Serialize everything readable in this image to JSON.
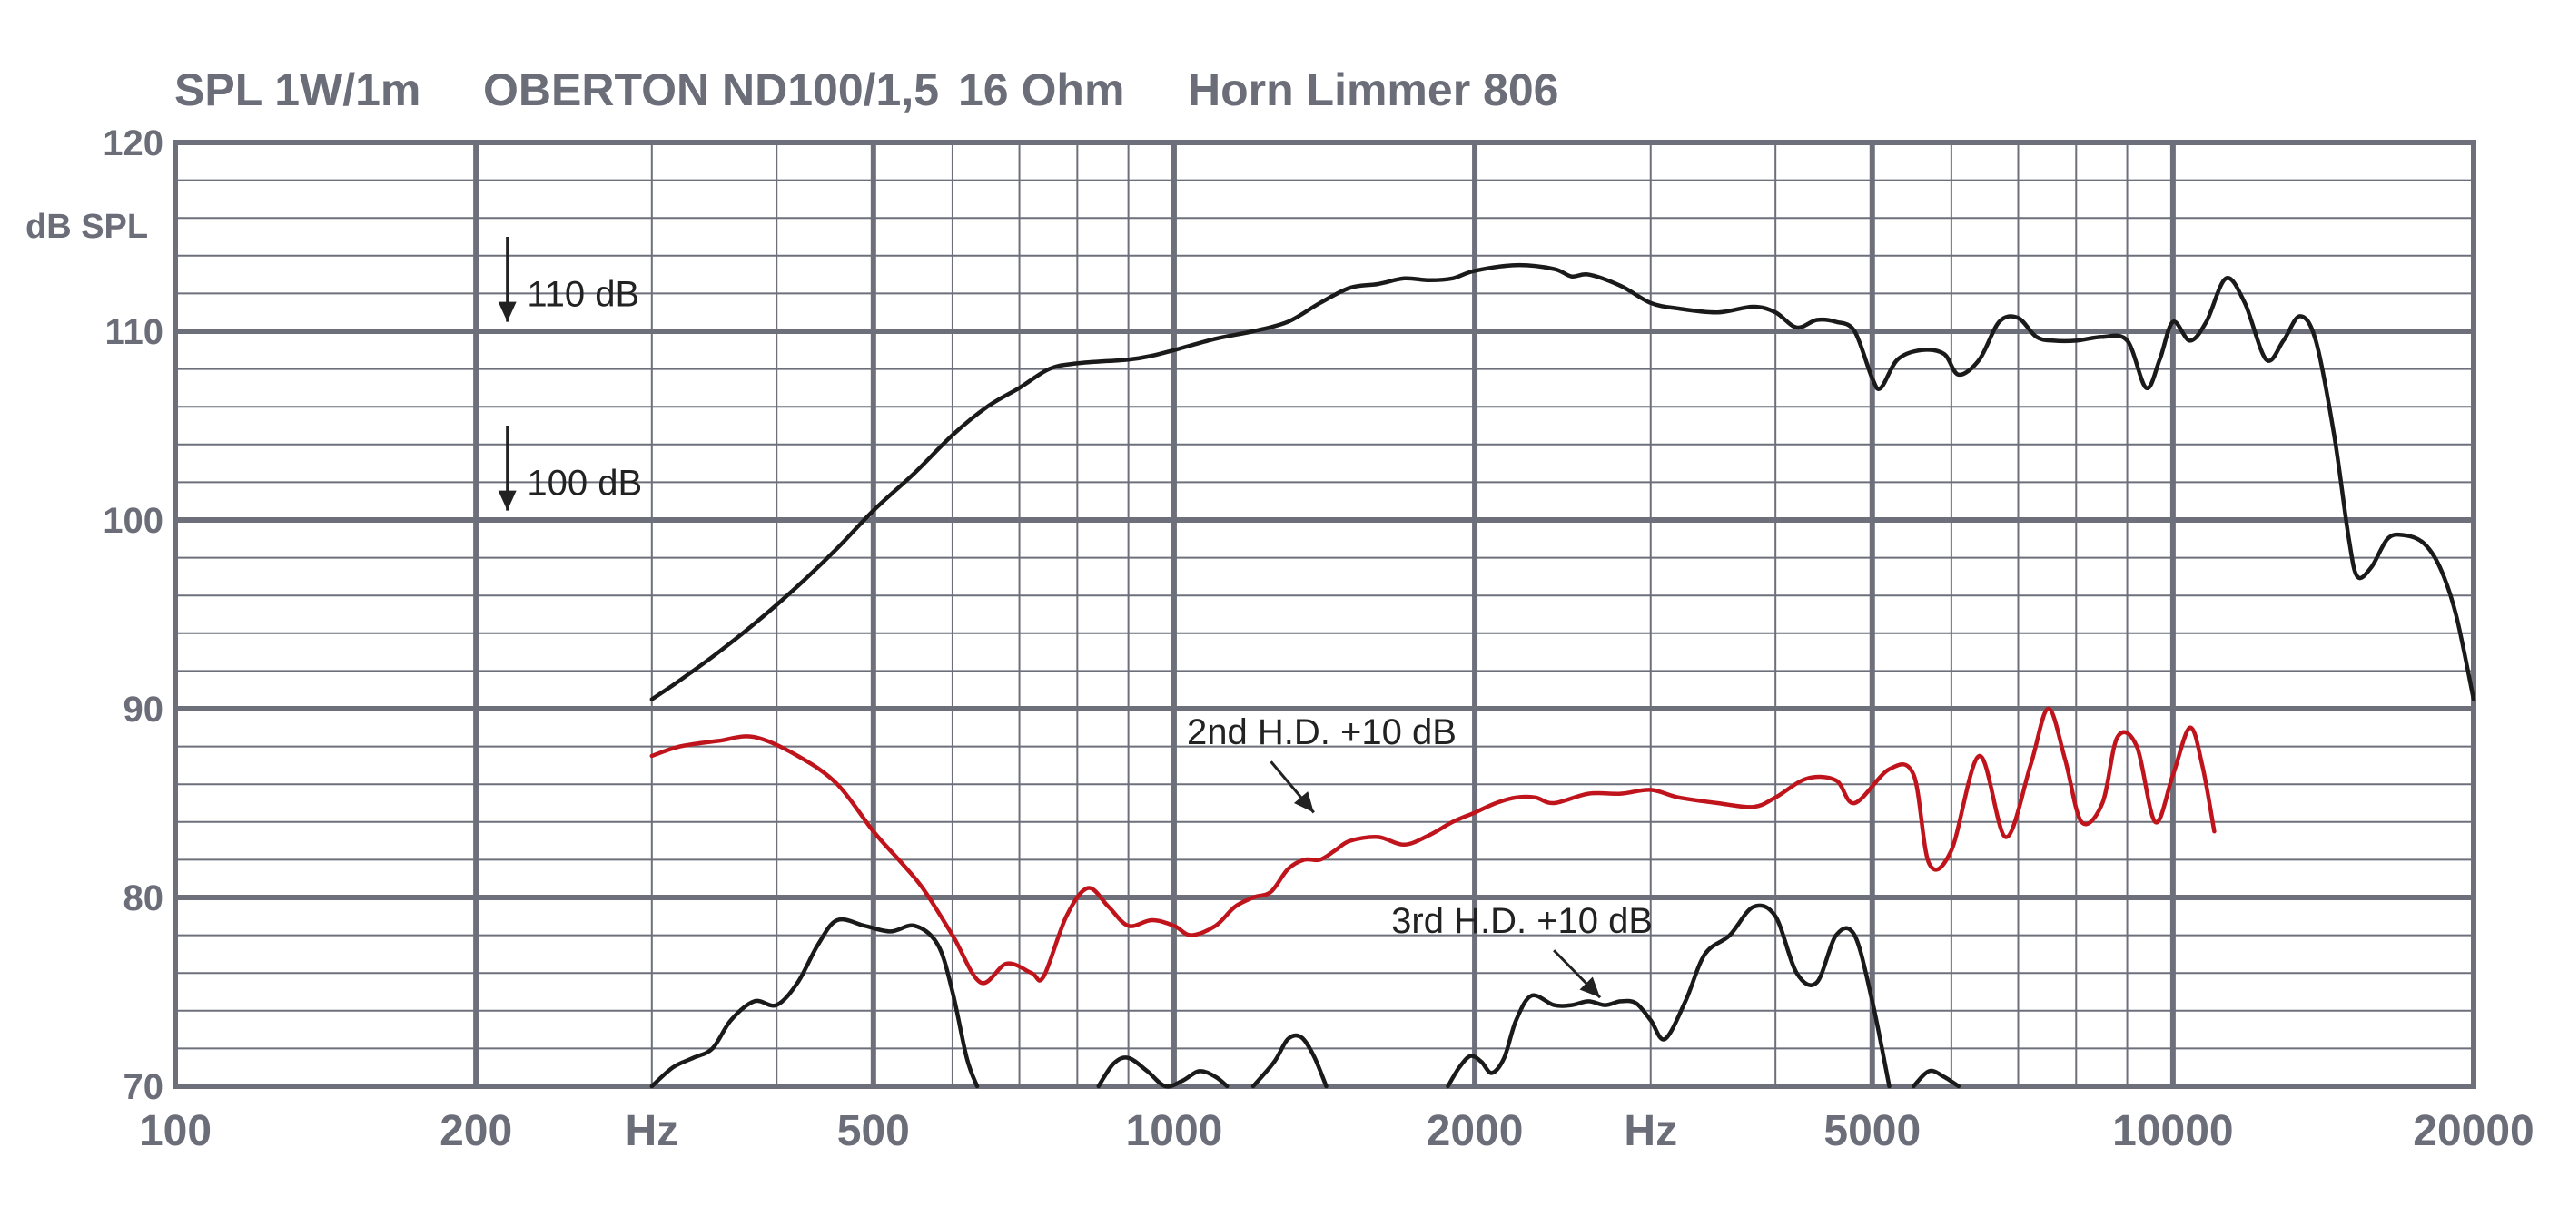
{
  "chart_data": {
    "type": "line",
    "title_parts": [
      "SPL 1W/1m",
      "OBERTON ND100/1,5",
      "16 Ohm",
      "Horn Limmer 806"
    ],
    "ylabel": "dB SPL",
    "x_scale": "log",
    "xlim": [
      100,
      20000
    ],
    "ylim": [
      70,
      120
    ],
    "grid": true,
    "x_tick_labels": [
      {
        "value": 100,
        "label": "100"
      },
      {
        "value": 200,
        "label": "200"
      },
      {
        "value": 300,
        "label": "Hz"
      },
      {
        "value": 500,
        "label": "500"
      },
      {
        "value": 1000,
        "label": "1000"
      },
      {
        "value": 2000,
        "label": "2000"
      },
      {
        "value": 3000,
        "label": "Hz"
      },
      {
        "value": 5000,
        "label": "5000"
      },
      {
        "value": 10000,
        "label": "10000"
      },
      {
        "value": 20000,
        "label": "20000"
      }
    ],
    "y_tick_labels": [
      {
        "value": 120,
        "label": "120"
      },
      {
        "value": 110,
        "label": "110"
      },
      {
        "value": 100,
        "label": "100"
      },
      {
        "value": 90,
        "label": "90"
      },
      {
        "value": 80,
        "label": "80"
      },
      {
        "value": 70,
        "label": "70"
      }
    ],
    "series": [
      {
        "color": "#1a1a1a",
        "points": [
          [
            300,
            90.5
          ],
          [
            320,
            91.5
          ],
          [
            350,
            93.0
          ],
          [
            380,
            94.5
          ],
          [
            420,
            96.5
          ],
          [
            460,
            98.5
          ],
          [
            500,
            100.5
          ],
          [
            550,
            102.5
          ],
          [
            600,
            104.5
          ],
          [
            650,
            106.0
          ],
          [
            700,
            107.0
          ],
          [
            750,
            108.0
          ],
          [
            800,
            108.3
          ],
          [
            900,
            108.5
          ],
          [
            950,
            108.7
          ],
          [
            1000,
            109.0
          ],
          [
            1100,
            109.6
          ],
          [
            1200,
            110.0
          ],
          [
            1300,
            110.5
          ],
          [
            1400,
            111.5
          ],
          [
            1500,
            112.3
          ],
          [
            1600,
            112.5
          ],
          [
            1700,
            112.8
          ],
          [
            1800,
            112.7
          ],
          [
            1900,
            112.8
          ],
          [
            2000,
            113.2
          ],
          [
            2200,
            113.5
          ],
          [
            2400,
            113.3
          ],
          [
            2500,
            112.9
          ],
          [
            2600,
            113.0
          ],
          [
            2800,
            112.4
          ],
          [
            3000,
            111.5
          ],
          [
            3200,
            111.2
          ],
          [
            3500,
            111.0
          ],
          [
            3800,
            111.3
          ],
          [
            4000,
            111.0
          ],
          [
            4200,
            110.2
          ],
          [
            4400,
            110.6
          ],
          [
            4600,
            110.5
          ],
          [
            4800,
            110.0
          ],
          [
            5000,
            107.5
          ],
          [
            5100,
            107.0
          ],
          [
            5300,
            108.5
          ],
          [
            5600,
            109.0
          ],
          [
            5900,
            108.8
          ],
          [
            6100,
            107.7
          ],
          [
            6400,
            108.5
          ],
          [
            6700,
            110.5
          ],
          [
            7000,
            110.7
          ],
          [
            7300,
            109.7
          ],
          [
            7600,
            109.5
          ],
          [
            8000,
            109.5
          ],
          [
            8500,
            109.7
          ],
          [
            9000,
            109.5
          ],
          [
            9400,
            107.0
          ],
          [
            9700,
            108.5
          ],
          [
            10000,
            110.5
          ],
          [
            10400,
            109.5
          ],
          [
            10800,
            110.5
          ],
          [
            11300,
            112.8
          ],
          [
            11800,
            111.5
          ],
          [
            12400,
            108.5
          ],
          [
            12900,
            109.5
          ],
          [
            13400,
            110.8
          ],
          [
            13900,
            109.5
          ],
          [
            14500,
            104.5
          ],
          [
            15000,
            99.0
          ],
          [
            15300,
            97.0
          ],
          [
            15800,
            97.5
          ],
          [
            16400,
            99.0
          ],
          [
            17000,
            99.2
          ],
          [
            17800,
            98.8
          ],
          [
            18500,
            97.5
          ],
          [
            19200,
            95.0
          ],
          [
            20000,
            90.5
          ]
        ]
      },
      {
        "color": "#c0141c",
        "points": [
          [
            300,
            87.5
          ],
          [
            320,
            88.0
          ],
          [
            350,
            88.3
          ],
          [
            380,
            88.5
          ],
          [
            420,
            87.5
          ],
          [
            460,
            86.0
          ],
          [
            500,
            83.5
          ],
          [
            530,
            82.0
          ],
          [
            560,
            80.5
          ],
          [
            600,
            78.0
          ],
          [
            640,
            75.5
          ],
          [
            680,
            76.5
          ],
          [
            720,
            76.0
          ],
          [
            740,
            75.8
          ],
          [
            780,
            79.0
          ],
          [
            820,
            80.5
          ],
          [
            860,
            79.5
          ],
          [
            900,
            78.5
          ],
          [
            950,
            78.8
          ],
          [
            1000,
            78.5
          ],
          [
            1040,
            78.0
          ],
          [
            1100,
            78.5
          ],
          [
            1150,
            79.5
          ],
          [
            1200,
            80.0
          ],
          [
            1250,
            80.3
          ],
          [
            1300,
            81.5
          ],
          [
            1350,
            82.0
          ],
          [
            1400,
            82.0
          ],
          [
            1450,
            82.5
          ],
          [
            1500,
            83.0
          ],
          [
            1600,
            83.2
          ],
          [
            1700,
            82.8
          ],
          [
            1800,
            83.3
          ],
          [
            1900,
            84.0
          ],
          [
            2000,
            84.5
          ],
          [
            2100,
            85.0
          ],
          [
            2200,
            85.3
          ],
          [
            2300,
            85.3
          ],
          [
            2400,
            85.0
          ],
          [
            2600,
            85.5
          ],
          [
            2800,
            85.5
          ],
          [
            3000,
            85.7
          ],
          [
            3200,
            85.3
          ],
          [
            3500,
            85.0
          ],
          [
            3800,
            84.8
          ],
          [
            4000,
            85.3
          ],
          [
            4300,
            86.3
          ],
          [
            4600,
            86.2
          ],
          [
            4800,
            85.0
          ],
          [
            5200,
            86.8
          ],
          [
            5500,
            86.5
          ],
          [
            5700,
            81.8
          ],
          [
            6000,
            82.5
          ],
          [
            6400,
            87.5
          ],
          [
            6800,
            83.2
          ],
          [
            7200,
            87.0
          ],
          [
            7500,
            90.0
          ],
          [
            7800,
            87.3
          ],
          [
            8100,
            84.0
          ],
          [
            8500,
            85.0
          ],
          [
            8800,
            88.5
          ],
          [
            9200,
            88.0
          ],
          [
            9600,
            84.0
          ],
          [
            10000,
            86.5
          ],
          [
            10400,
            89.0
          ],
          [
            10700,
            87.0
          ],
          [
            11000,
            83.5
          ]
        ]
      },
      {
        "color": "#1a1a1a",
        "segments": [
          [
            [
              300,
              70.0
            ],
            [
              315,
              71.0
            ],
            [
              330,
              71.5
            ],
            [
              345,
              72.0
            ],
            [
              360,
              73.5
            ],
            [
              380,
              74.5
            ],
            [
              400,
              74.3
            ],
            [
              420,
              75.5
            ],
            [
              440,
              77.5
            ],
            [
              460,
              78.8
            ],
            [
              490,
              78.5
            ],
            [
              520,
              78.2
            ],
            [
              550,
              78.5
            ],
            [
              580,
              77.5
            ],
            [
              600,
              75.0
            ],
            [
              620,
              71.5
            ],
            [
              635,
              70.0
            ]
          ],
          [
            [
              840,
              70.0
            ],
            [
              870,
              71.2
            ],
            [
              900,
              71.5
            ],
            [
              940,
              70.8
            ],
            [
              980,
              70.0
            ],
            [
              1020,
              70.3
            ],
            [
              1060,
              70.8
            ],
            [
              1100,
              70.5
            ],
            [
              1130,
              70.0
            ]
          ],
          [
            [
              1200,
              70.0
            ],
            [
              1260,
              71.3
            ],
            [
              1300,
              72.5
            ],
            [
              1340,
              72.6
            ],
            [
              1380,
              71.6
            ],
            [
              1420,
              70.0
            ]
          ],
          [
            [
              1880,
              70.0
            ],
            [
              1930,
              71.0
            ],
            [
              1980,
              71.6
            ],
            [
              2030,
              71.3
            ],
            [
              2080,
              70.7
            ],
            [
              2140,
              71.5
            ],
            [
              2200,
              73.5
            ],
            [
              2280,
              74.8
            ],
            [
              2400,
              74.3
            ],
            [
              2500,
              74.3
            ],
            [
              2600,
              74.5
            ],
            [
              2700,
              74.3
            ],
            [
              2800,
              74.5
            ],
            [
              2900,
              74.4
            ],
            [
              3000,
              73.5
            ],
            [
              3100,
              72.5
            ],
            [
              3250,
              74.5
            ],
            [
              3400,
              77.0
            ],
            [
              3600,
              78.0
            ],
            [
              3800,
              79.5
            ],
            [
              4000,
              79.0
            ],
            [
              4200,
              76.0
            ],
            [
              4400,
              75.5
            ],
            [
              4600,
              78.0
            ],
            [
              4800,
              78.0
            ],
            [
              5000,
              74.5
            ],
            [
              5200,
              70.0
            ]
          ],
          [
            [
              5500,
              70.0
            ],
            [
              5700,
              70.8
            ],
            [
              5900,
              70.5
            ],
            [
              6100,
              70.0
            ]
          ]
        ]
      }
    ],
    "annotations": [
      {
        "text": "2nd H.D.    +10 dB",
        "anchor": [
          1030,
          88.8
        ],
        "arrow_from": [
          1250,
          87.2
        ],
        "arrow_to": [
          1380,
          84.5
        ]
      },
      {
        "text": "3rd H.D. +10 dB",
        "anchor": [
          1650,
          78.8
        ],
        "arrow_from": [
          2400,
          77.2
        ],
        "arrow_to": [
          2670,
          74.7
        ]
      },
      {
        "text": "110 dB",
        "anchor": [
          225,
          112.0
        ],
        "arrow_from": [
          215,
          115.0
        ],
        "arrow_to": [
          215,
          110.5
        ]
      },
      {
        "text": "100 dB",
        "anchor": [
          225,
          102.0
        ],
        "arrow_from": [
          215,
          105.0
        ],
        "arrow_to": [
          215,
          100.5
        ]
      }
    ]
  }
}
